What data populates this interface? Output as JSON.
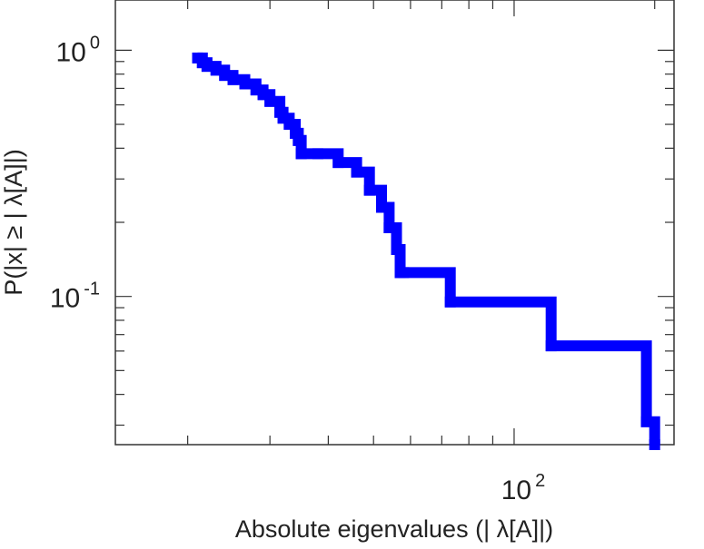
{
  "chart_data": {
    "type": "line",
    "subtype": "step",
    "title": "",
    "xlabel": "Absolute eigenvalues (|     λ[A]|)",
    "ylabel": "P(|x|  ≥ | λ[A]|)",
    "xscale": "log",
    "yscale": "log",
    "xlim": [
      14,
      220
    ],
    "ylim": [
      0.025,
      1.6
    ],
    "grid": false,
    "x_ticks": [
      {
        "value": 100,
        "base": "10",
        "exp": "2"
      }
    ],
    "y_ticks": [
      {
        "value": 1,
        "base": "10",
        "exp": "0"
      },
      {
        "value": 0.1,
        "base": "10",
        "exp": "-1"
      }
    ],
    "series": [
      {
        "color": "#0000ff",
        "x": [
          21.0,
          21.5,
          22.0,
          23.0,
          24.0,
          25.0,
          26.5,
          28.0,
          29.0,
          30.0,
          31.5,
          32.0,
          33.0,
          34.0,
          34.5,
          35.0,
          38.0,
          42.0,
          46.0,
          49.0,
          52.0,
          54.0,
          56.0,
          57.0,
          58.0,
          73.0,
          120.0,
          192.0,
          200.0
        ],
        "y": [
          0.93,
          0.89,
          0.86,
          0.83,
          0.79,
          0.76,
          0.73,
          0.69,
          0.66,
          0.62,
          0.56,
          0.53,
          0.5,
          0.46,
          0.43,
          0.38,
          0.38,
          0.35,
          0.32,
          0.27,
          0.23,
          0.19,
          0.155,
          0.125,
          0.125,
          0.095,
          0.063,
          0.031,
          0.025
        ]
      }
    ]
  }
}
